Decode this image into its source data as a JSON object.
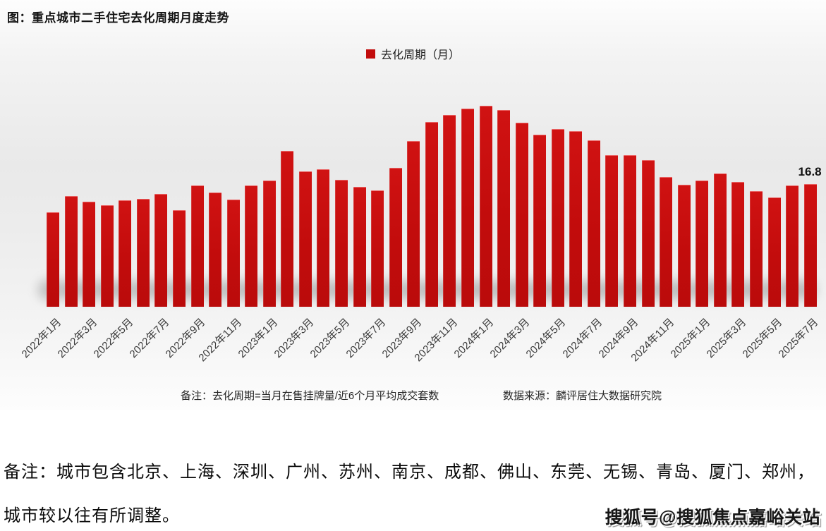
{
  "title": "图：重点城市二手住宅去化周期月度走势",
  "legend": {
    "label": "去化周期（月）",
    "color": "#c20c0c"
  },
  "footnote": {
    "left": "备注：去化周期=当月在售挂牌量/近6个月平均成交套数",
    "right": "数据来源：麟评居住大数据研究院"
  },
  "note_paragraph": {
    "line1": "备注：城市包含北京、上海、深圳、广州、苏州、南京、成都、佛山、东莞、无锡、青岛、厦门、郑州，",
    "line2": "城市较以往有所调整。"
  },
  "watermark": "搜狐号@搜狐焦点嘉峪关站",
  "chart_data": {
    "type": "bar",
    "title": "图：重点城市二手住宅去化周期月度走势",
    "legend_entries": [
      "去化周期（月）"
    ],
    "legend_position": "top-center",
    "bar_color": "#c20c0c",
    "grid": false,
    "ylabel": "去化周期（月）",
    "ylim": [
      0,
      30
    ],
    "categories": [
      "2022年1月",
      "2022年2月",
      "2022年3月",
      "2022年4月",
      "2022年5月",
      "2022年6月",
      "2022年7月",
      "2022年8月",
      "2022年9月",
      "2022年10月",
      "2022年11月",
      "2022年12月",
      "2023年1月",
      "2023年2月",
      "2023年3月",
      "2023年4月",
      "2023年5月",
      "2023年6月",
      "2023年7月",
      "2023年8月",
      "2023年9月",
      "2023年10月",
      "2023年11月",
      "2023年12月",
      "2024年1月",
      "2024年2月",
      "2024年3月",
      "2024年4月",
      "2024年5月",
      "2024年6月",
      "2024年7月",
      "2024年8月",
      "2024年9月",
      "2024年10月",
      "2024年11月",
      "2024年12月",
      "2025年1月",
      "2025年2月",
      "2025年3月",
      "2025年4月",
      "2025年5月",
      "2025年6月",
      "2025年7月"
    ],
    "values": [
      12.9,
      15.1,
      14.4,
      13.9,
      14.6,
      14.8,
      15.4,
      13.2,
      16.6,
      15.6,
      14.7,
      16.6,
      17.3,
      21.3,
      18.5,
      18.8,
      17.4,
      16.4,
      15.9,
      19.0,
      22.7,
      25.3,
      26.2,
      27.1,
      27.5,
      26.9,
      25.2,
      23.5,
      24.3,
      24.0,
      22.8,
      20.7,
      20.7,
      20.1,
      17.7,
      16.7,
      17.3,
      18.2,
      17.1,
      15.8,
      14.9,
      16.6,
      16.8
    ],
    "x_tick_every": 2,
    "annotations": [
      {
        "text": "16.8",
        "category": "2025年7月"
      }
    ]
  }
}
